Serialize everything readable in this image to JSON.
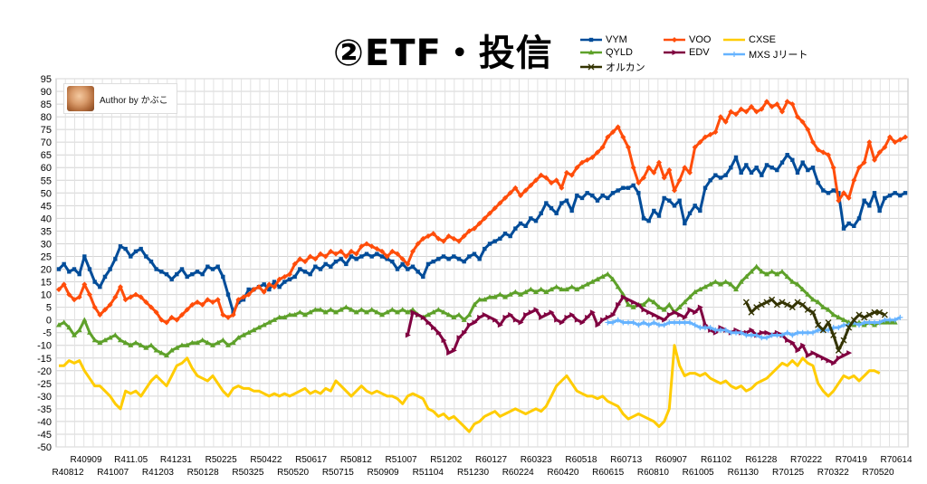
{
  "title": "②ETF・投信",
  "author": "Author by かぶこ",
  "chart_data": {
    "type": "line",
    "ylim": [
      -50,
      95
    ],
    "ytick_step": 5,
    "grid": true,
    "legend_position": "top-right",
    "x_ticks_upper": [
      "R40909",
      "R411.05",
      "R41231",
      "R50225",
      "R50422",
      "R50617",
      "R50812",
      "R51007",
      "R51202",
      "R60127",
      "R60323",
      "R60518",
      "R60713",
      "R60907",
      "R61102",
      "R61228",
      "R70222",
      "R70419",
      "R70614"
    ],
    "x_ticks_lower": [
      "R40812",
      "R41007",
      "R41203",
      "R50128",
      "R50325",
      "R50520",
      "R50715",
      "R50909",
      "R51104",
      "R51230",
      "R60224",
      "R60420",
      "R60615",
      "R60810",
      "R61005",
      "R61130",
      "R70125",
      "R70322",
      "R70520"
    ],
    "series": [
      {
        "name": "VYM",
        "color": "#004c99",
        "marker": "square",
        "x_start": 0,
        "values": [
          20,
          22,
          19,
          20,
          18,
          25,
          20,
          15,
          13,
          17,
          20,
          24,
          29,
          28,
          25,
          27,
          28,
          25,
          23,
          20,
          19,
          18,
          16,
          18,
          20,
          17,
          18,
          19,
          18,
          21,
          20,
          21,
          17,
          10,
          3,
          7,
          8,
          12,
          12,
          13,
          14,
          12,
          15,
          13,
          15,
          16,
          17,
          20,
          19,
          18,
          21,
          20,
          22,
          21,
          23,
          24,
          22,
          25,
          24,
          25,
          26,
          25,
          26,
          25,
          24,
          23,
          20,
          22,
          20,
          21,
          19,
          17,
          22,
          23,
          24,
          25,
          24,
          25,
          24,
          23,
          25,
          26,
          24,
          28,
          30,
          31,
          32,
          34,
          33,
          36,
          38,
          37,
          40,
          39,
          42,
          46,
          44,
          42,
          46,
          47,
          43,
          49,
          48,
          50,
          49,
          47,
          49,
          48,
          50,
          51,
          52,
          52,
          53,
          50,
          40,
          39,
          43,
          41,
          48,
          47,
          45,
          47,
          38,
          42,
          45,
          43,
          52,
          55,
          57,
          56,
          57,
          60,
          64,
          58,
          61,
          58,
          60,
          57,
          61,
          60,
          59,
          62,
          65,
          63,
          58,
          62,
          59,
          60,
          54,
          51,
          50,
          51,
          50,
          36,
          38,
          37,
          40,
          47,
          45,
          50,
          43,
          48,
          49,
          50,
          49,
          50
        ]
      },
      {
        "name": "VOO",
        "color": "#ff4d0a",
        "marker": "diamond",
        "x_start": 0,
        "values": [
          12,
          14,
          10,
          8,
          9,
          14,
          10,
          5,
          2,
          4,
          6,
          9,
          13,
          8,
          9,
          10,
          9,
          7,
          5,
          3,
          0,
          -1,
          1,
          0,
          2,
          4,
          6,
          7,
          6,
          8,
          7,
          8,
          2,
          1,
          2,
          8,
          9,
          10,
          12,
          13,
          11,
          14,
          13,
          16,
          17,
          18,
          22,
          24,
          23,
          25,
          24,
          26,
          25,
          27,
          26,
          27,
          25,
          27,
          26,
          29,
          30,
          29,
          28,
          27,
          25,
          27,
          26,
          24,
          22,
          27,
          30,
          32,
          33,
          34,
          32,
          31,
          33,
          32,
          31,
          33,
          35,
          36,
          38,
          40,
          42,
          44,
          46,
          48,
          50,
          52,
          49,
          51,
          53,
          55,
          57,
          56,
          54,
          55,
          52,
          58,
          57,
          60,
          62,
          63,
          64,
          66,
          68,
          72,
          74,
          76,
          72,
          68,
          60,
          54,
          56,
          60,
          58,
          62,
          56,
          59,
          51,
          55,
          60,
          58,
          68,
          70,
          72,
          73,
          74,
          80,
          78,
          82,
          81,
          83,
          82,
          84,
          82,
          83,
          86,
          84,
          85,
          82,
          86,
          85,
          80,
          78,
          75,
          70,
          67,
          66,
          65,
          60,
          47,
          50,
          48,
          55,
          60,
          62,
          70,
          63,
          66,
          68,
          72,
          70,
          71,
          72
        ]
      },
      {
        "name": "CXSE",
        "color": "#ffcc00",
        "marker": "none",
        "x_start": 0,
        "values": [
          -18,
          -18,
          -16,
          -17,
          -16,
          -20,
          -23,
          -26,
          -26,
          -28,
          -30,
          -33,
          -35,
          -28,
          -29,
          -28,
          -30,
          -27,
          -24,
          -22,
          -24,
          -26,
          -22,
          -18,
          -17,
          -15,
          -19,
          -22,
          -23,
          -24,
          -22,
          -25,
          -28,
          -30,
          -27,
          -26,
          -27,
          -27,
          -28,
          -28,
          -29,
          -30,
          -29,
          -30,
          -29,
          -30,
          -29,
          -28,
          -27,
          -29,
          -28,
          -29,
          -27,
          -28,
          -24,
          -26,
          -28,
          -30,
          -28,
          -26,
          -28,
          -29,
          -28,
          -29,
          -30,
          -30,
          -31,
          -33,
          -30,
          -29,
          -30,
          -31,
          -35,
          -36,
          -38,
          -37,
          -39,
          -38,
          -40,
          -42,
          -44,
          -41,
          -40,
          -38,
          -37,
          -36,
          -38,
          -37,
          -36,
          -35,
          -36,
          -37,
          -36,
          -35,
          -36,
          -34,
          -30,
          -26,
          -24,
          -22,
          -25,
          -28,
          -29,
          -30,
          -30,
          -31,
          -30,
          -32,
          -33,
          -34,
          -37,
          -39,
          -38,
          -37,
          -38,
          -39,
          -40,
          -42,
          -40,
          -35,
          -10,
          -18,
          -22,
          -21,
          -21,
          -22,
          -21,
          -23,
          -24,
          -25,
          -24,
          -26,
          -27,
          -26,
          -28,
          -27,
          -25,
          -24,
          -23,
          -21,
          -19,
          -17,
          -18,
          -16,
          -18,
          -15,
          -17,
          -18,
          -25,
          -28,
          -30,
          -28,
          -25,
          -22,
          -23,
          -22,
          -24,
          -22,
          -20,
          -20,
          -21
        ]
      },
      {
        "name": "QYLD",
        "color": "#5ea12a",
        "marker": "triangle",
        "x_start": 0,
        "values": [
          -2,
          -1,
          -3,
          -6,
          -4,
          0,
          -5,
          -8,
          -9,
          -8,
          -7,
          -6,
          -8,
          -9,
          -10,
          -9,
          -10,
          -11,
          -10,
          -12,
          -13,
          -14,
          -12,
          -11,
          -10,
          -10,
          -9,
          -9,
          -8,
          -9,
          -10,
          -9,
          -8,
          -10,
          -9,
          -7,
          -6,
          -5,
          -4,
          -3,
          -2,
          -1,
          0,
          1,
          1,
          2,
          2,
          3,
          2,
          3,
          4,
          4,
          3,
          4,
          3,
          4,
          5,
          4,
          3,
          4,
          3,
          4,
          3,
          2,
          3,
          4,
          3,
          4,
          3,
          4,
          2,
          1,
          2,
          3,
          4,
          3,
          2,
          1,
          2,
          0,
          2,
          6,
          8,
          8,
          9,
          9,
          10,
          9,
          10,
          11,
          10,
          11,
          12,
          11,
          12,
          11,
          12,
          13,
          12,
          12,
          13,
          12,
          13,
          14,
          15,
          16,
          17,
          18,
          16,
          13,
          10,
          6,
          5,
          6,
          6,
          8,
          7,
          5,
          4,
          6,
          3,
          5,
          7,
          9,
          11,
          12,
          13,
          14,
          15,
          14,
          15,
          14,
          12,
          15,
          17,
          19,
          21,
          19,
          18,
          19,
          18,
          19,
          17,
          15,
          14,
          12,
          10,
          8,
          7,
          5,
          4,
          2,
          1,
          0,
          -1,
          -2,
          -1,
          -2,
          -1,
          -2,
          -1,
          -1,
          -1,
          -1
        ]
      },
      {
        "name": "EDV",
        "color": "#800040",
        "marker": "arrow",
        "x_start": 68,
        "values": [
          -6,
          3,
          2,
          1,
          -1,
          -3,
          -5,
          -8,
          -13,
          -12,
          -7,
          -5,
          -2,
          -1,
          1,
          2,
          1,
          0,
          -2,
          1,
          2,
          0,
          -1,
          2,
          3,
          4,
          1,
          2,
          3,
          0,
          -1,
          1,
          2,
          0,
          -1,
          1,
          3,
          -2,
          0,
          1,
          2,
          6,
          9,
          8,
          7,
          6,
          4,
          3,
          2,
          1,
          0,
          2,
          3,
          2,
          1,
          4,
          3,
          5,
          -2,
          -4,
          -5,
          -3,
          -4,
          -5,
          -4,
          -5,
          -5,
          -4,
          -6,
          -5,
          -5,
          -6,
          -5,
          -6,
          -8,
          -9,
          -12,
          -10,
          -14,
          -13,
          -14,
          -15,
          -16,
          -17,
          -15,
          -14,
          -13
        ]
      },
      {
        "name": "MXS Jリート",
        "color": "#66b3ff",
        "marker": "plus",
        "x_start": 107,
        "values": [
          -1,
          -1,
          0,
          -1,
          -1,
          -1,
          -2,
          -1,
          -2,
          -1,
          -2,
          -2,
          -1,
          -1,
          -1,
          -1,
          -1,
          -2,
          -3,
          -3,
          -3,
          -4,
          -4,
          -4,
          -5,
          -5,
          -5,
          -6,
          -6,
          -6,
          -7,
          -7,
          -6,
          -6,
          -6,
          -5,
          -6,
          -5,
          -5,
          -5,
          -5,
          -4,
          -4,
          -4,
          -3,
          -3,
          -2,
          -2,
          -1,
          -2,
          -1,
          -1,
          -1,
          -1,
          0,
          0,
          0,
          1
        ]
      },
      {
        "name": "オルカン",
        "color": "#333300",
        "marker": "x",
        "x_start": 134,
        "values": [
          7,
          3,
          5,
          6,
          7,
          8,
          6,
          7,
          6,
          5,
          7,
          6,
          4,
          3,
          -2,
          -4,
          -1,
          -6,
          -12,
          -8,
          -3,
          0,
          2,
          1,
          2,
          3,
          3,
          2
        ]
      }
    ]
  }
}
